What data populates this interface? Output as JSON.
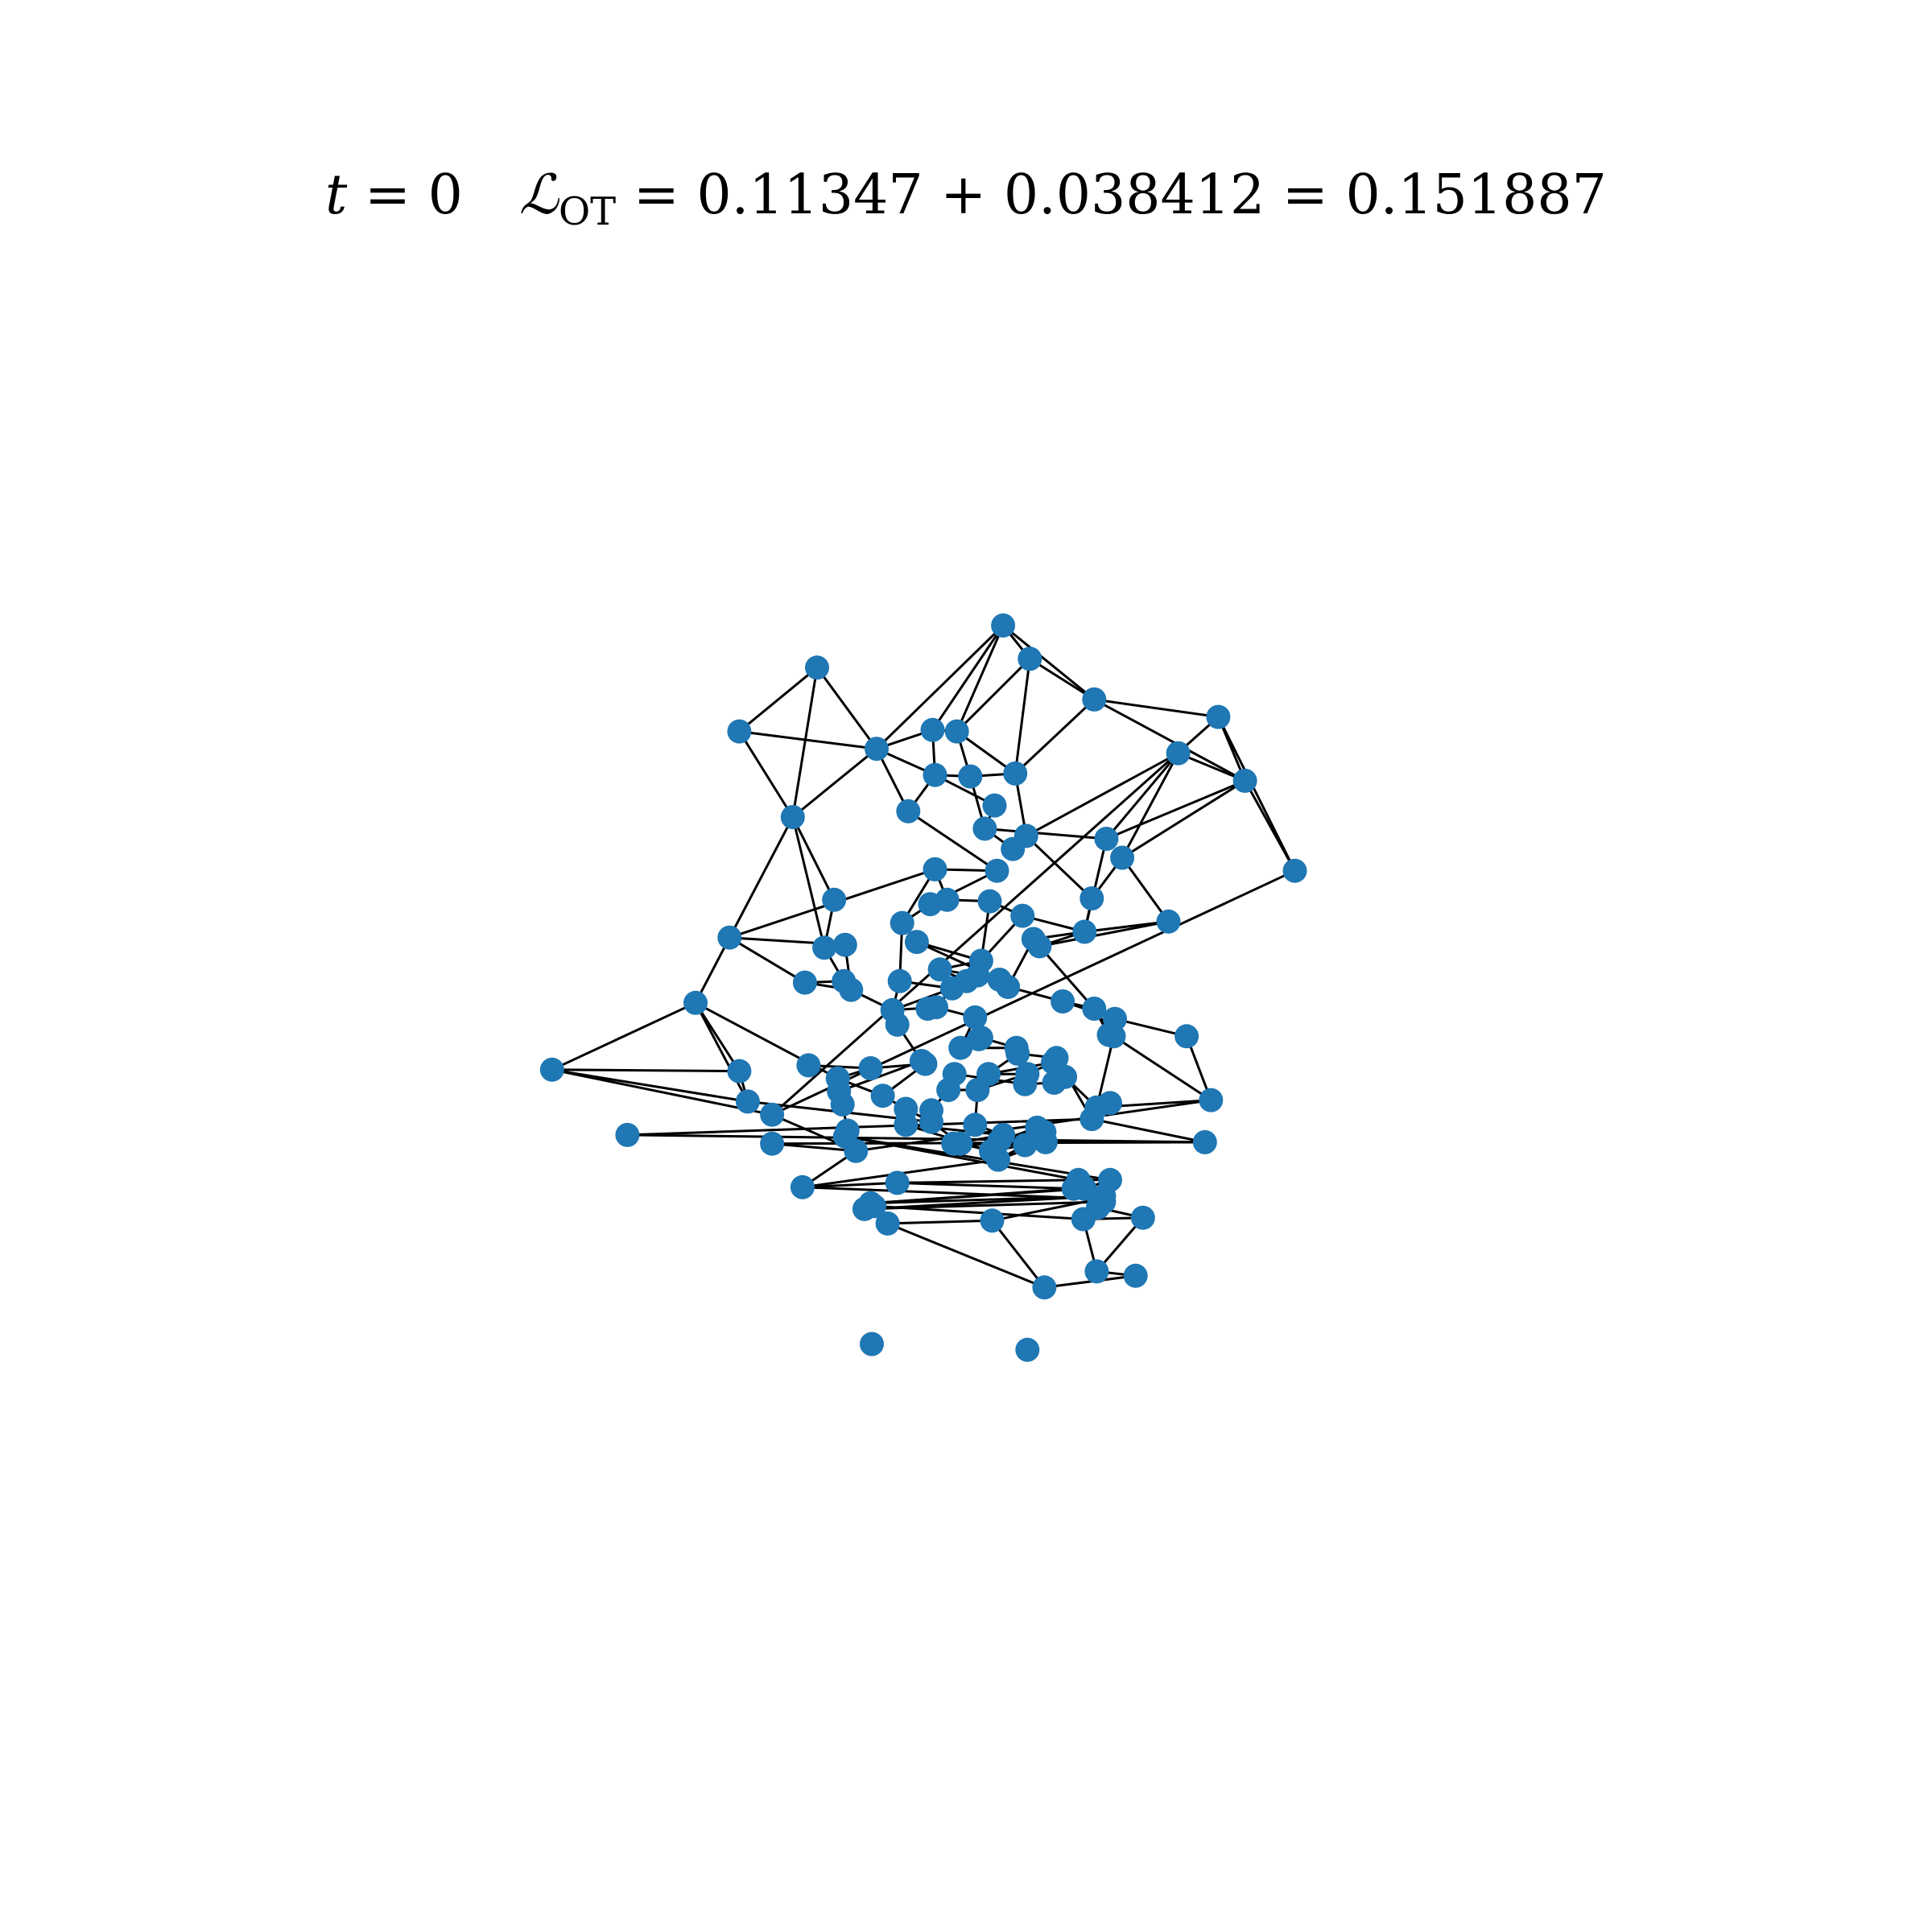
{
  "title": {
    "t_symbol": "t",
    "t_equals": " = 0",
    "loss_symbol": "ℒ",
    "loss_subscript": "OT",
    "loss_expression": " = 0.11347 + 0.038412 = 0.151887"
  },
  "style": {
    "node_color": "#1f77b4",
    "edge_color": "#000000",
    "background": "#ffffff"
  },
  "graph": {
    "nodes": [
      [
        0.547,
        0.112
      ],
      [
        0.569,
        0.135
      ],
      [
        0.622,
        0.163
      ],
      [
        0.724,
        0.175
      ],
      [
        0.746,
        0.219
      ],
      [
        0.787,
        0.281
      ],
      [
        0.691,
        0.2
      ],
      [
        0.394,
        0.141
      ],
      [
        0.33,
        0.185
      ],
      [
        0.443,
        0.197
      ],
      [
        0.489,
        0.184
      ],
      [
        0.509,
        0.185
      ],
      [
        0.491,
        0.215
      ],
      [
        0.52,
        0.216
      ],
      [
        0.557,
        0.214
      ],
      [
        0.54,
        0.236
      ],
      [
        0.469,
        0.24
      ],
      [
        0.374,
        0.244
      ],
      [
        0.532,
        0.252
      ],
      [
        0.566,
        0.257
      ],
      [
        0.555,
        0.266
      ],
      [
        0.632,
        0.259
      ],
      [
        0.645,
        0.272
      ],
      [
        0.542,
        0.281
      ],
      [
        0.62,
        0.3
      ],
      [
        0.683,
        0.316
      ],
      [
        0.614,
        0.323
      ],
      [
        0.408,
        0.301
      ],
      [
        0.322,
        0.327
      ],
      [
        0.491,
        0.28
      ],
      [
        0.487,
        0.304
      ],
      [
        0.501,
        0.301
      ],
      [
        0.536,
        0.302
      ],
      [
        0.563,
        0.312
      ],
      [
        0.464,
        0.317
      ],
      [
        0.476,
        0.33
      ],
      [
        0.572,
        0.328
      ],
      [
        0.577,
        0.333
      ],
      [
        0.4,
        0.334
      ],
      [
        0.417,
        0.332
      ],
      [
        0.529,
        0.343
      ],
      [
        0.495,
        0.349
      ],
      [
        0.462,
        0.357
      ],
      [
        0.384,
        0.358
      ],
      [
        0.416,
        0.357
      ],
      [
        0.422,
        0.363
      ],
      [
        0.517,
        0.357
      ],
      [
        0.526,
        0.353
      ],
      [
        0.544,
        0.356
      ],
      [
        0.551,
        0.361
      ],
      [
        0.505,
        0.362
      ],
      [
        0.596,
        0.371
      ],
      [
        0.294,
        0.372
      ],
      [
        0.456,
        0.377
      ],
      [
        0.485,
        0.376
      ],
      [
        0.492,
        0.375
      ],
      [
        0.524,
        0.382
      ],
      [
        0.46,
        0.387
      ],
      [
        0.622,
        0.376
      ],
      [
        0.639,
        0.383
      ],
      [
        0.529,
        0.396
      ],
      [
        0.527,
        0.397
      ],
      [
        0.512,
        0.403
      ],
      [
        0.634,
        0.394
      ],
      [
        0.638,
        0.395
      ],
      [
        0.698,
        0.395
      ],
      [
        0.558,
        0.403
      ],
      [
        0.559,
        0.407
      ],
      [
        0.591,
        0.41
      ],
      [
        0.588,
        0.413
      ],
      [
        0.48,
        0.412
      ],
      [
        0.535,
        0.421
      ],
      [
        0.176,
        0.418
      ],
      [
        0.387,
        0.415
      ],
      [
        0.33,
        0.419
      ],
      [
        0.411,
        0.424
      ],
      [
        0.438,
        0.417
      ],
      [
        0.507,
        0.421
      ],
      [
        0.483,
        0.414
      ],
      [
        0.412,
        0.433
      ],
      [
        0.567,
        0.421
      ],
      [
        0.565,
        0.428
      ],
      [
        0.589,
        0.427
      ],
      [
        0.598,
        0.423
      ],
      [
        0.502,
        0.432
      ],
      [
        0.526,
        0.432
      ],
      [
        0.448,
        0.436
      ],
      [
        0.337,
        0.44
      ],
      [
        0.415,
        0.442
      ],
      [
        0.467,
        0.445
      ],
      [
        0.488,
        0.446
      ],
      [
        0.635,
        0.441
      ],
      [
        0.624,
        0.444
      ],
      [
        0.62,
        0.452
      ],
      [
        0.718,
        0.439
      ],
      [
        0.357,
        0.449
      ],
      [
        0.488,
        0.454
      ],
      [
        0.467,
        0.456
      ],
      [
        0.524,
        0.456
      ],
      [
        0.547,
        0.463
      ],
      [
        0.575,
        0.458
      ],
      [
        0.581,
        0.461
      ],
      [
        0.238,
        0.463
      ],
      [
        0.419,
        0.46
      ],
      [
        0.417,
        0.464
      ],
      [
        0.544,
        0.467
      ],
      [
        0.506,
        0.469
      ],
      [
        0.512,
        0.469
      ],
      [
        0.537,
        0.474
      ],
      [
        0.565,
        0.47
      ],
      [
        0.582,
        0.468
      ],
      [
        0.713,
        0.468
      ],
      [
        0.357,
        0.469
      ],
      [
        0.426,
        0.474
      ],
      [
        0.543,
        0.48
      ],
      [
        0.46,
        0.496
      ],
      [
        0.609,
        0.494
      ],
      [
        0.382,
        0.499
      ],
      [
        0.635,
        0.494
      ],
      [
        0.438,
        0.51
      ],
      [
        0.605,
        0.5
      ],
      [
        0.614,
        0.5
      ],
      [
        0.63,
        0.505
      ],
      [
        0.63,
        0.509
      ],
      [
        0.626,
        0.507
      ],
      [
        0.625,
        0.513
      ],
      [
        0.433,
        0.514
      ],
      [
        0.441,
        0.512
      ],
      [
        0.613,
        0.521
      ],
      [
        0.662,
        0.52
      ],
      [
        0.538,
        0.522
      ],
      [
        0.452,
        0.524
      ],
      [
        0.581,
        0.568
      ],
      [
        0.624,
        0.557
      ],
      [
        0.656,
        0.56
      ],
      [
        0.439,
        0.607
      ],
      [
        0.567,
        0.611
      ]
    ],
    "edges": [
      [
        0,
        1
      ],
      [
        0,
        2
      ],
      [
        0,
        10
      ],
      [
        0,
        11
      ],
      [
        1,
        2
      ],
      [
        1,
        11
      ],
      [
        1,
        14
      ],
      [
        2,
        3
      ],
      [
        2,
        4
      ],
      [
        2,
        14
      ],
      [
        3,
        4
      ],
      [
        3,
        5
      ],
      [
        4,
        5
      ],
      [
        4,
        6
      ],
      [
        4,
        21
      ],
      [
        4,
        22
      ],
      [
        5,
        95
      ],
      [
        6,
        19
      ],
      [
        6,
        21
      ],
      [
        6,
        22
      ],
      [
        7,
        8
      ],
      [
        7,
        9
      ],
      [
        7,
        17
      ],
      [
        8,
        9
      ],
      [
        8,
        17
      ],
      [
        9,
        10
      ],
      [
        9,
        12
      ],
      [
        9,
        16
      ],
      [
        9,
        17
      ],
      [
        10,
        11
      ],
      [
        10,
        12
      ],
      [
        11,
        13
      ],
      [
        11,
        14
      ],
      [
        12,
        13
      ],
      [
        12,
        16
      ],
      [
        13,
        14
      ],
      [
        13,
        18
      ],
      [
        14,
        19
      ],
      [
        15,
        18
      ],
      [
        16,
        23
      ],
      [
        17,
        27
      ],
      [
        17,
        28
      ],
      [
        17,
        38
      ],
      [
        18,
        20
      ],
      [
        19,
        20
      ],
      [
        19,
        24
      ],
      [
        21,
        26
      ],
      [
        22,
        24
      ],
      [
        22,
        25
      ],
      [
        23,
        29
      ],
      [
        23,
        30
      ],
      [
        24,
        26
      ],
      [
        25,
        26
      ],
      [
        26,
        33
      ],
      [
        26,
        37
      ],
      [
        26,
        36
      ],
      [
        27,
        38
      ],
      [
        28,
        29
      ],
      [
        28,
        39
      ],
      [
        28,
        43
      ],
      [
        28,
        52
      ],
      [
        29,
        31
      ],
      [
        30,
        31
      ],
      [
        30,
        34
      ],
      [
        31,
        32
      ],
      [
        32,
        33
      ],
      [
        32,
        40
      ],
      [
        33,
        40
      ],
      [
        34,
        35
      ],
      [
        34,
        42
      ],
      [
        35,
        40
      ],
      [
        35,
        48
      ],
      [
        36,
        49
      ],
      [
        37,
        58
      ],
      [
        38,
        39
      ],
      [
        38,
        44
      ],
      [
        39,
        45
      ],
      [
        40,
        47
      ],
      [
        41,
        46
      ],
      [
        41,
        48
      ],
      [
        42,
        53
      ],
      [
        43,
        45
      ],
      [
        43,
        44
      ],
      [
        44,
        45
      ],
      [
        45,
        53
      ],
      [
        46,
        47
      ],
      [
        47,
        48
      ],
      [
        48,
        49
      ],
      [
        49,
        51
      ],
      [
        50,
        55
      ],
      [
        51,
        58
      ],
      [
        51,
        59
      ],
      [
        52,
        72
      ],
      [
        52,
        74
      ],
      [
        52,
        87
      ],
      [
        52,
        75
      ],
      [
        53,
        57
      ],
      [
        53,
        55
      ],
      [
        54,
        55
      ],
      [
        55,
        56
      ],
      [
        56,
        60
      ],
      [
        57,
        70
      ],
      [
        58,
        63
      ],
      [
        58,
        64
      ],
      [
        59,
        64
      ],
      [
        59,
        65
      ],
      [
        60,
        61
      ],
      [
        61,
        62
      ],
      [
        62,
        66
      ],
      [
        63,
        64
      ],
      [
        64,
        94
      ],
      [
        64,
        92
      ],
      [
        65,
        94
      ],
      [
        66,
        67
      ],
      [
        67,
        71
      ],
      [
        68,
        69
      ],
      [
        69,
        71
      ],
      [
        68,
        93
      ],
      [
        69,
        80
      ],
      [
        70,
        78
      ],
      [
        70,
        79
      ],
      [
        71,
        80
      ],
      [
        72,
        74
      ],
      [
        72,
        87
      ],
      [
        72,
        95
      ],
      [
        74,
        87
      ],
      [
        75,
        86
      ],
      [
        75,
        76
      ],
      [
        76,
        78
      ],
      [
        77,
        84
      ],
      [
        78,
        86
      ],
      [
        79,
        88
      ],
      [
        80,
        85
      ],
      [
        81,
        82
      ],
      [
        82,
        83
      ],
      [
        83,
        92
      ],
      [
        84,
        85
      ],
      [
        85,
        98
      ],
      [
        86,
        89
      ],
      [
        87,
        96
      ],
      [
        88,
        103
      ],
      [
        89,
        96
      ],
      [
        90,
        96
      ],
      [
        91,
        92
      ],
      [
        92,
        94
      ],
      [
        93,
        102
      ],
      [
        93,
        111
      ],
      [
        94,
        113
      ],
      [
        95,
        113
      ],
      [
        96,
        107
      ],
      [
        97,
        108
      ],
      [
        98,
        99
      ],
      [
        99,
        106
      ],
      [
        100,
        101
      ],
      [
        100,
        105
      ],
      [
        101,
        110
      ],
      [
        102,
        111
      ],
      [
        103,
        104
      ],
      [
        104,
        116
      ],
      [
        105,
        109
      ],
      [
        106,
        107
      ],
      [
        107,
        108
      ],
      [
        108,
        109
      ],
      [
        109,
        114
      ],
      [
        110,
        111
      ],
      [
        111,
        112
      ],
      [
        112,
        113
      ],
      [
        113,
        117
      ],
      [
        114,
        117
      ],
      [
        115,
        116
      ],
      [
        115,
        117
      ],
      [
        116,
        118
      ],
      [
        117,
        124
      ],
      [
        118,
        121
      ],
      [
        119,
        120
      ],
      [
        119,
        122
      ],
      [
        120,
        123
      ],
      [
        121,
        125
      ],
      [
        122,
        126
      ],
      [
        123,
        124
      ],
      [
        124,
        130
      ],
      [
        125,
        129
      ],
      [
        126,
        127
      ],
      [
        127,
        128
      ],
      [
        128,
        129
      ],
      [
        129,
        133
      ],
      [
        130,
        131
      ],
      [
        131,
        132
      ],
      [
        132,
        134
      ],
      [
        133,
        134
      ],
      [
        0,
        9
      ],
      [
        3,
        95
      ],
      [
        12,
        15
      ],
      [
        18,
        21
      ],
      [
        25,
        37
      ],
      [
        29,
        34
      ],
      [
        40,
        41
      ],
      [
        42,
        50
      ],
      [
        50,
        53
      ],
      [
        56,
        62
      ],
      [
        60,
        66
      ],
      [
        67,
        68
      ],
      [
        73,
        76
      ],
      [
        77,
        81
      ],
      [
        79,
        88
      ],
      [
        84,
        90
      ],
      [
        89,
        97
      ],
      [
        91,
        93
      ],
      [
        97,
        99
      ],
      [
        101,
        105
      ],
      [
        104,
        118
      ],
      [
        106,
        109
      ],
      [
        110,
        114
      ],
      [
        115,
        120
      ],
      [
        119,
        121
      ],
      [
        122,
        125
      ],
      [
        123,
        126
      ],
      [
        127,
        131
      ],
      [
        128,
        133
      ],
      [
        130,
        132
      ]
    ]
  }
}
